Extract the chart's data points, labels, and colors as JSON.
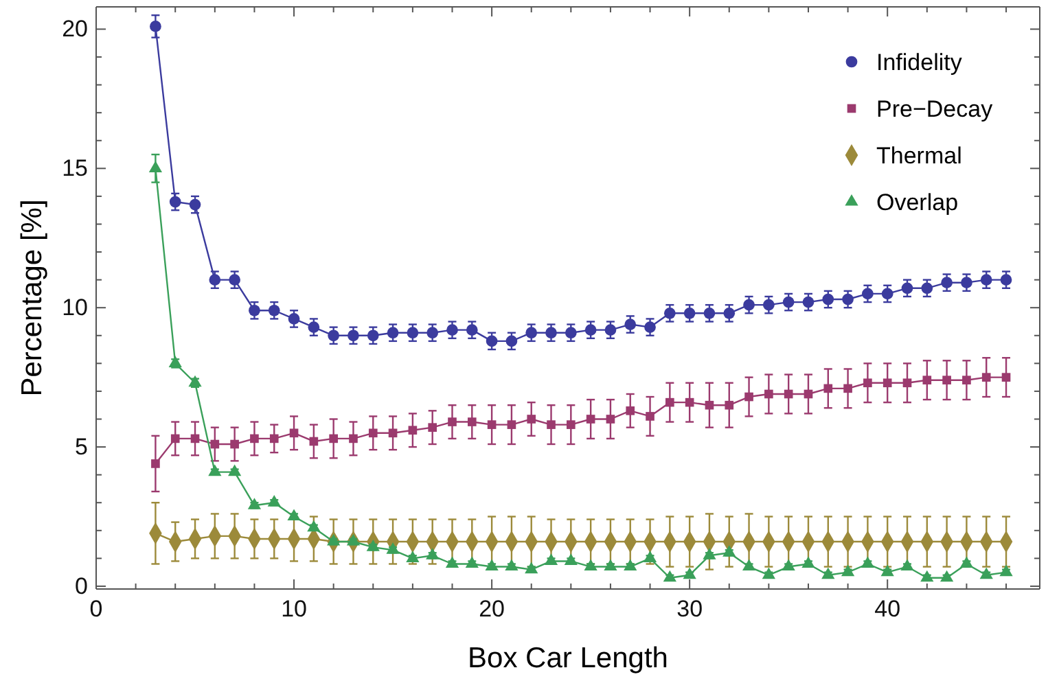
{
  "chart_data": {
    "type": "line",
    "xlabel": "Box Car Length",
    "ylabel": "Percentage [%]",
    "x": [
      3,
      4,
      5,
      6,
      7,
      8,
      9,
      10,
      11,
      12,
      13,
      14,
      15,
      16,
      17,
      18,
      19,
      20,
      21,
      22,
      23,
      24,
      25,
      26,
      27,
      28,
      29,
      30,
      31,
      32,
      33,
      34,
      35,
      36,
      37,
      38,
      39,
      40,
      41,
      42,
      43,
      44,
      45,
      46
    ],
    "xlim": [
      0,
      47.7
    ],
    "ylim": [
      -0.1,
      20.8
    ],
    "xticks": [
      0,
      {
        "value": 2,
        "label": null
      },
      {
        "value": 4,
        "label": null
      },
      {
        "value": 6,
        "label": null
      },
      {
        "value": 8,
        "label": null
      },
      10,
      {
        "value": 12,
        "label": null
      },
      {
        "value": 14,
        "label": null
      },
      {
        "value": 16,
        "label": null
      },
      {
        "value": 18,
        "label": null
      },
      20,
      {
        "value": 22,
        "label": null
      },
      {
        "value": 24,
        "label": null
      },
      {
        "value": 26,
        "label": null
      },
      {
        "value": 28,
        "label": null
      },
      30,
      {
        "value": 32,
        "label": null
      },
      {
        "value": 34,
        "label": null
      },
      {
        "value": 36,
        "label": null
      },
      {
        "value": 38,
        "label": null
      },
      40,
      {
        "value": 42,
        "label": null
      },
      {
        "value": 44,
        "label": null
      },
      {
        "value": 46,
        "label": null
      }
    ],
    "yticks": [
      0,
      {
        "value": 1,
        "label": null
      },
      {
        "value": 2,
        "label": null
      },
      {
        "value": 3,
        "label": null
      },
      {
        "value": 4,
        "label": null
      },
      5,
      {
        "value": 6,
        "label": null
      },
      {
        "value": 7,
        "label": null
      },
      {
        "value": 8,
        "label": null
      },
      {
        "value": 9,
        "label": null
      },
      10,
      {
        "value": 11,
        "label": null
      },
      {
        "value": 12,
        "label": null
      },
      {
        "value": 13,
        "label": null
      },
      {
        "value": 14,
        "label": null
      },
      15,
      {
        "value": 16,
        "label": null
      },
      {
        "value": 17,
        "label": null
      },
      {
        "value": 18,
        "label": null
      },
      {
        "value": 19,
        "label": null
      },
      20
    ],
    "grid": false,
    "legend": "top right",
    "series": [
      {
        "name": "Infidelity",
        "color": "#3b3b9e",
        "marker": "circle",
        "values": [
          20.1,
          13.8,
          13.7,
          11.0,
          11.0,
          9.9,
          9.9,
          9.6,
          9.3,
          9.0,
          9.0,
          9.0,
          9.1,
          9.1,
          9.1,
          9.2,
          9.2,
          8.8,
          8.8,
          9.1,
          9.1,
          9.1,
          9.2,
          9.2,
          9.4,
          9.3,
          9.8,
          9.8,
          9.8,
          9.8,
          10.1,
          10.1,
          10.2,
          10.2,
          10.3,
          10.3,
          10.5,
          10.5,
          10.7,
          10.7,
          10.9,
          10.9,
          11.0,
          11.0
        ],
        "errors": [
          0.4,
          0.3,
          0.3,
          0.3,
          0.3,
          0.3,
          0.3,
          0.3,
          0.3,
          0.3,
          0.3,
          0.3,
          0.3,
          0.3,
          0.3,
          0.3,
          0.3,
          0.3,
          0.3,
          0.3,
          0.3,
          0.3,
          0.3,
          0.3,
          0.3,
          0.3,
          0.3,
          0.3,
          0.3,
          0.3,
          0.3,
          0.3,
          0.3,
          0.3,
          0.3,
          0.3,
          0.3,
          0.3,
          0.3,
          0.3,
          0.3,
          0.3,
          0.3,
          0.3
        ]
      },
      {
        "name": "Pre−Decay",
        "color": "#9b3a6e",
        "marker": "square",
        "values": [
          4.4,
          5.3,
          5.3,
          5.1,
          5.1,
          5.3,
          5.3,
          5.5,
          5.2,
          5.3,
          5.3,
          5.5,
          5.5,
          5.6,
          5.7,
          5.9,
          5.9,
          5.8,
          5.8,
          6.0,
          5.8,
          5.8,
          6.0,
          6.0,
          6.3,
          6.1,
          6.6,
          6.6,
          6.5,
          6.5,
          6.8,
          6.9,
          6.9,
          6.9,
          7.1,
          7.1,
          7.3,
          7.3,
          7.3,
          7.4,
          7.4,
          7.4,
          7.5,
          7.5
        ],
        "errors": [
          1.0,
          0.6,
          0.6,
          0.6,
          0.6,
          0.6,
          0.5,
          0.6,
          0.6,
          0.7,
          0.6,
          0.6,
          0.6,
          0.6,
          0.6,
          0.6,
          0.6,
          0.7,
          0.7,
          0.6,
          0.7,
          0.7,
          0.7,
          0.7,
          0.6,
          0.7,
          0.7,
          0.7,
          0.8,
          0.8,
          0.7,
          0.7,
          0.7,
          0.7,
          0.7,
          0.7,
          0.7,
          0.7,
          0.7,
          0.7,
          0.7,
          0.7,
          0.7,
          0.7
        ]
      },
      {
        "name": "Thermal",
        "color": "#9c8a3a",
        "marker": "diamond",
        "values": [
          1.9,
          1.6,
          1.7,
          1.8,
          1.8,
          1.7,
          1.7,
          1.7,
          1.7,
          1.6,
          1.6,
          1.6,
          1.6,
          1.6,
          1.6,
          1.6,
          1.6,
          1.6,
          1.6,
          1.6,
          1.6,
          1.6,
          1.6,
          1.6,
          1.6,
          1.6,
          1.6,
          1.6,
          1.6,
          1.6,
          1.6,
          1.6,
          1.6,
          1.6,
          1.6,
          1.6,
          1.6,
          1.6,
          1.6,
          1.6,
          1.6,
          1.6,
          1.6,
          1.6
        ],
        "errors": [
          1.1,
          0.7,
          0.7,
          0.8,
          0.8,
          0.7,
          0.7,
          0.8,
          0.8,
          0.8,
          0.8,
          0.8,
          0.8,
          0.8,
          0.8,
          0.8,
          0.8,
          0.9,
          0.9,
          0.9,
          0.8,
          0.8,
          0.8,
          0.8,
          0.8,
          0.8,
          0.9,
          0.9,
          1.0,
          0.9,
          1.0,
          0.9,
          0.9,
          0.9,
          0.9,
          0.9,
          0.9,
          0.9,
          0.9,
          0.9,
          0.9,
          0.9,
          0.9,
          0.9
        ]
      },
      {
        "name": "Overlap",
        "color": "#3aa05a",
        "marker": "triangle",
        "values": [
          15.0,
          8.0,
          7.3,
          4.1,
          4.1,
          2.9,
          3.0,
          2.5,
          2.1,
          1.6,
          1.6,
          1.4,
          1.3,
          1.0,
          1.1,
          0.8,
          0.8,
          0.7,
          0.7,
          0.6,
          0.9,
          0.9,
          0.7,
          0.7,
          0.7,
          1.0,
          0.3,
          0.4,
          1.1,
          1.2,
          0.7,
          0.4,
          0.7,
          0.8,
          0.4,
          0.5,
          0.8,
          0.5,
          0.7,
          0.3,
          0.3,
          0.8,
          0.4,
          0.5
        ],
        "errors": [
          0.5,
          0.15,
          0.15,
          0.1,
          0.1,
          0.1,
          0.1,
          0.1,
          0.1,
          0.1,
          0.1,
          0.1,
          0.1,
          0.1,
          0.1,
          0.1,
          0.1,
          0.1,
          0.1,
          0.1,
          0.1,
          0.1,
          0.1,
          0.1,
          0.1,
          0.1,
          0.1,
          0.1,
          0.1,
          0.1,
          0.1,
          0.1,
          0.1,
          0.1,
          0.1,
          0.1,
          0.1,
          0.1,
          0.1,
          0.1,
          0.1,
          0.1,
          0.1,
          0.1
        ]
      }
    ]
  }
}
